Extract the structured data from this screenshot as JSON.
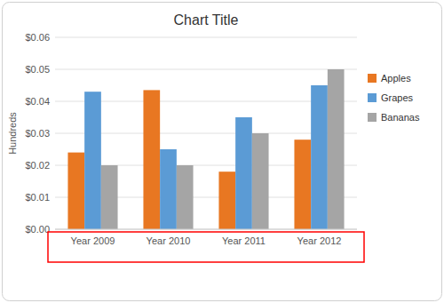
{
  "chart_data": {
    "type": "bar",
    "title": "Chart Title",
    "ylabel": "Hundreds",
    "categories": [
      "Year 2009",
      "Year 2010",
      "Year 2011",
      "Year 2012"
    ],
    "series": [
      {
        "name": "Apples",
        "color": "#E87722",
        "values": [
          0.024,
          0.0435,
          0.018,
          0.028
        ]
      },
      {
        "name": "Grapes",
        "color": "#5B9BD5",
        "values": [
          0.043,
          0.025,
          0.035,
          0.045
        ]
      },
      {
        "name": "Bananas",
        "color": "#A5A5A5",
        "values": [
          0.02,
          0.02,
          0.03,
          0.05
        ]
      }
    ],
    "ylim": [
      0.0,
      0.06
    ],
    "yticks": [
      {
        "value": 0.0,
        "label": "$0.00"
      },
      {
        "value": 0.01,
        "label": "$0.01"
      },
      {
        "value": 0.02,
        "label": "$0.02"
      },
      {
        "value": 0.03,
        "label": "$0.03"
      },
      {
        "value": 0.04,
        "label": "$0.04"
      },
      {
        "value": 0.05,
        "label": "$0.05"
      },
      {
        "value": 0.06,
        "label": "$0.06"
      }
    ],
    "grid": true,
    "legend": "right"
  }
}
